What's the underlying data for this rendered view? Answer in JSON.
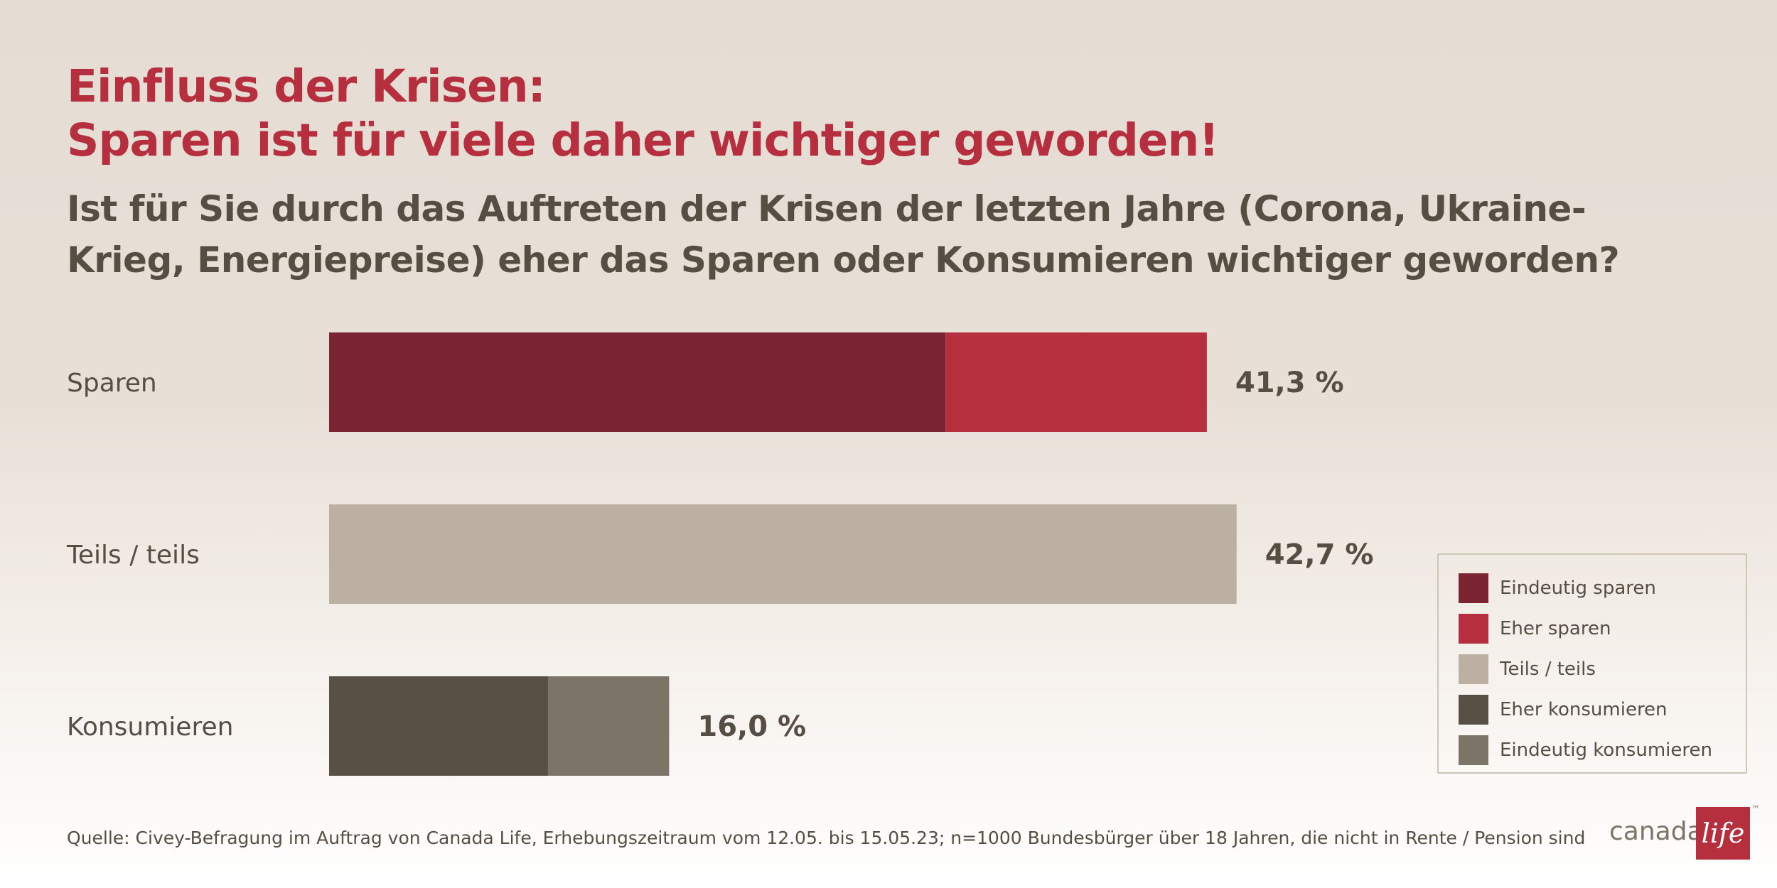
{
  "title_line1": "Einfluss der Krisen:",
  "title_line2": "Sparen ist für viele daher wichtiger geworden!",
  "subtitle": "Ist für Sie durch das Auftreten der Krisen der letzten Jahre (Corona, Ukraine-Krieg, Energiepreise) eher das Sparen oder Konsumieren wichtiger geworden?",
  "chart_data": {
    "type": "bar",
    "orientation": "horizontal",
    "stacked": true,
    "categories": [
      "Sparen",
      "Teils / teils",
      "Konsumieren"
    ],
    "series": [
      {
        "name": "Eindeutig sparen",
        "color": "#7b2532",
        "values": [
          29.0,
          0,
          0
        ]
      },
      {
        "name": "Eher sparen",
        "color": "#b52f3e",
        "values": [
          12.3,
          0,
          0
        ]
      },
      {
        "name": "Teils / teils",
        "color": "#bbb0a1",
        "values": [
          0,
          42.7,
          0
        ]
      },
      {
        "name": "Eher konsumieren",
        "color": "#575045",
        "values": [
          0,
          0,
          10.3
        ]
      },
      {
        "name": "Eindeutig konsumieren",
        "color": "#7d7468",
        "values": [
          0,
          0,
          5.7
        ]
      }
    ],
    "totals": [
      41.3,
      42.7,
      16.0
    ],
    "total_labels": [
      "41,3 %",
      "42,7 %",
      "16,0 %"
    ],
    "xlim": [
      0,
      100
    ],
    "grid": false,
    "legend_position": "right"
  },
  "legend": {
    "items": [
      {
        "label": "Eindeutig sparen",
        "color": "#7b2532"
      },
      {
        "label": "Eher sparen",
        "color": "#b52f3e"
      },
      {
        "label": "Teils / teils",
        "color": "#bbb0a1"
      },
      {
        "label": "Eher konsumieren",
        "color": "#575045"
      },
      {
        "label": "Eindeutig konsumieren",
        "color": "#7d7468"
      }
    ]
  },
  "source": "Quelle: Civey-Befragung im Auftrag von Canada Life, Erhebungszeitraum vom 12.05. bis 15.05.23; n=1000 Bundesbürger über 18 Jahren, die nicht in Rente / Pension sind",
  "logo": {
    "text": "canada",
    "box_text": "life",
    "tm": "™"
  },
  "colors": {
    "accent": "#b52f3e",
    "text": "#564d43"
  }
}
